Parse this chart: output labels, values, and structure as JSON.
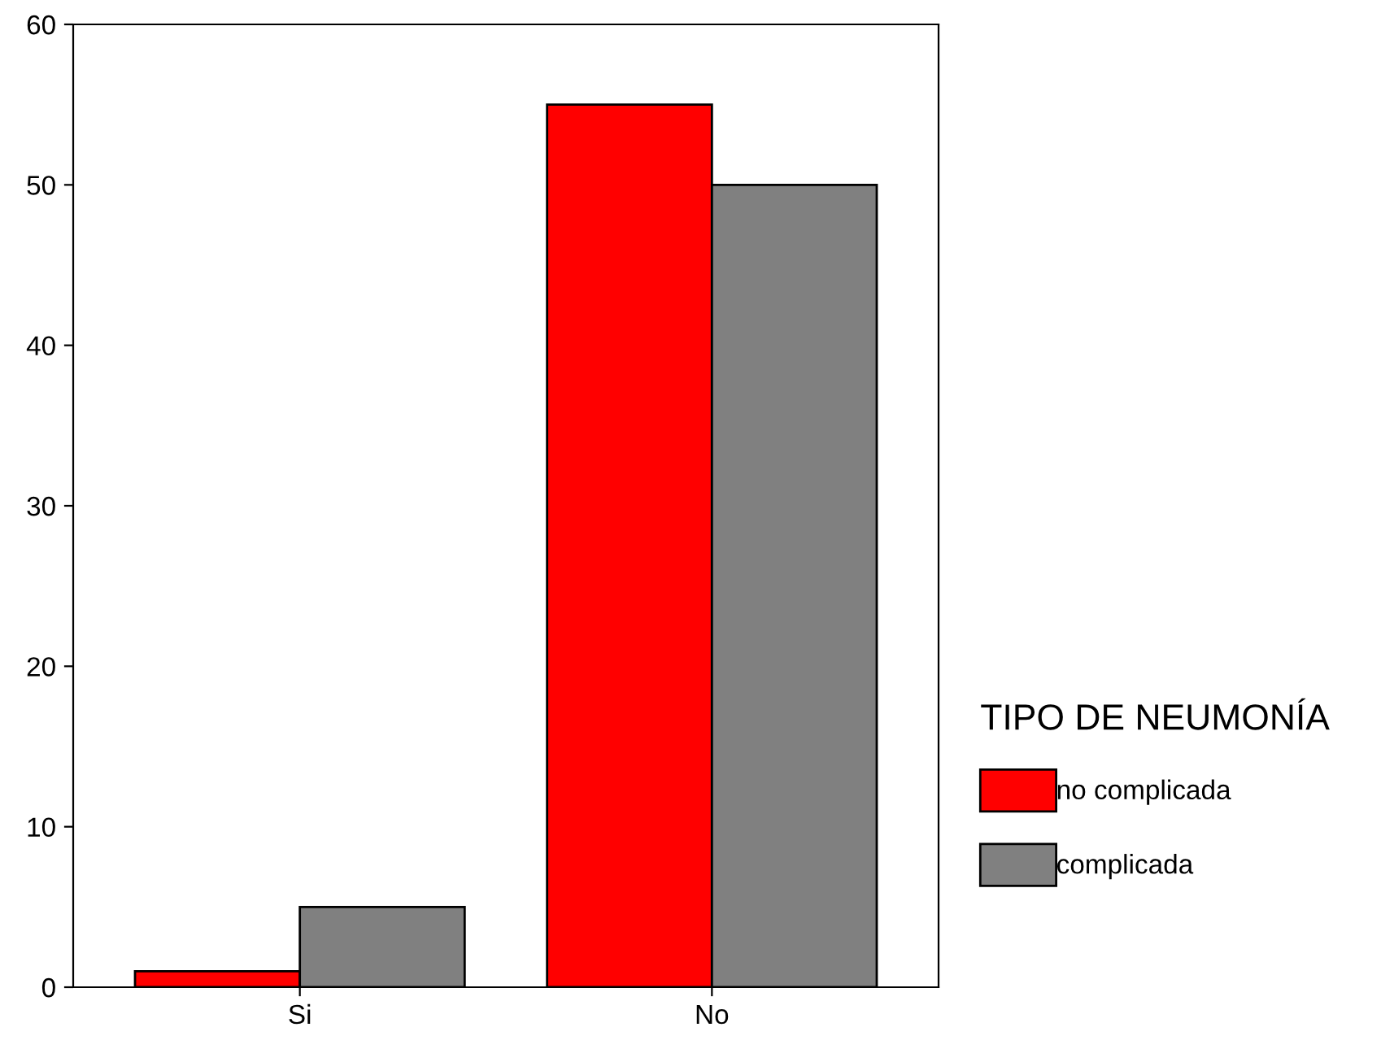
{
  "chart_data": {
    "type": "bar",
    "categories": [
      "Si",
      "No"
    ],
    "series": [
      {
        "name": "no complicada",
        "color": "#ff0000",
        "values": [
          1,
          55
        ]
      },
      {
        "name": "complicada",
        "color": "#808080",
        "values": [
          5,
          50
        ]
      }
    ],
    "ylim": [
      0,
      60
    ],
    "yticks": [
      0,
      10,
      20,
      30,
      40,
      50,
      60
    ],
    "legend": "right",
    "legend_title": "TIPO DE NEUMONÍA",
    "grid": false
  }
}
